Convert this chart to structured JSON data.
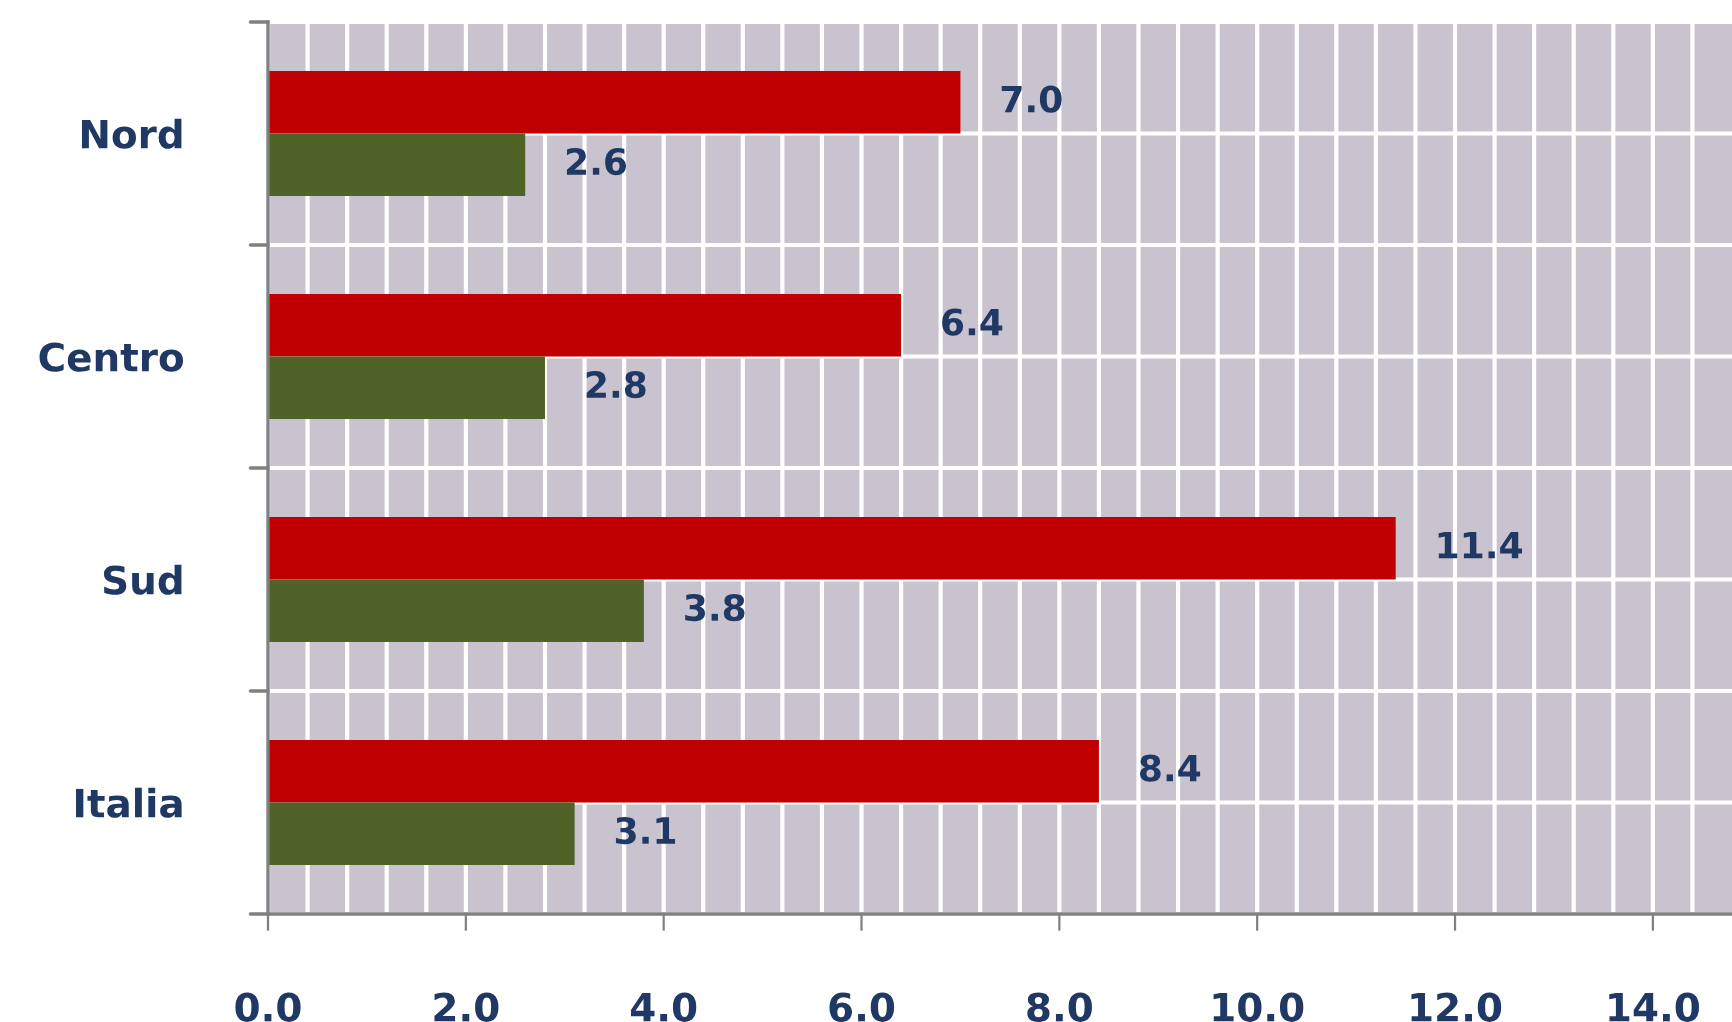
{
  "chart_data": {
    "type": "bar",
    "orientation": "horizontal",
    "categories": [
      "Nord",
      "Centro",
      "Sud",
      "Italia"
    ],
    "series": [
      {
        "color": "#c00000",
        "values": [
          7.0,
          6.4,
          11.4,
          8.4
        ],
        "value_labels": [
          "7.0",
          "6.4",
          "11.4",
          "8.4"
        ]
      },
      {
        "color": "#4f6228",
        "values": [
          2.6,
          2.8,
          3.8,
          3.1
        ],
        "value_labels": [
          "2.6",
          "2.8",
          "3.8",
          "3.1"
        ]
      }
    ],
    "xlim": [
      0,
      14.8
    ],
    "xticks": [
      {
        "value": 0,
        "label": "0.0"
      },
      {
        "value": 2,
        "label": "2.0"
      },
      {
        "value": 4,
        "label": "4.0"
      },
      {
        "value": 6,
        "label": "6.0"
      },
      {
        "value": 8,
        "label": "8.0"
      },
      {
        "value": 10,
        "label": "10.0"
      },
      {
        "value": 12,
        "label": "12.0"
      },
      {
        "value": 14,
        "label": "14.0"
      }
    ],
    "grid": true,
    "legend": false
  }
}
